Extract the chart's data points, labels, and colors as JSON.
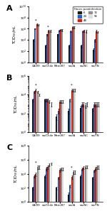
{
  "panels": [
    "A",
    "B",
    "C"
  ],
  "groups": [
    "CA/09",
    "sw/Chile",
    "Mem/87",
    "sw/IA",
    "sw/NC",
    "sw/TN"
  ],
  "bar_colors": [
    "#1a1a1a",
    "#3060b0",
    "#d02010",
    "#909090",
    "#e0e0e0"
  ],
  "panel_A": {
    "n_bars": 4,
    "ylim": [
      1.0,
      10000000000.0
    ],
    "yticks": [
      1.0,
      100.0,
      10000.0,
      1000000.0,
      100000000.0,
      10000000000.0
    ],
    "data": [
      [
        10000.0,
        1000000.0,
        6000000.0,
        5000000.0
      ],
      [
        1000.0,
        100000.0,
        500000.0,
        500000.0
      ],
      [
        100000.0,
        500000.0,
        700000.0,
        600000.0
      ],
      [
        1000.0,
        400000.0,
        2000000.0,
        2000000.0
      ],
      [
        1000.0,
        400000.0,
        500000.0,
        400000.0
      ],
      [
        200.0,
        10000.0,
        400000.0,
        300000.0
      ]
    ],
    "errors": [
      [
        3000.0,
        200000.0,
        2000000.0,
        1000000.0
      ],
      [
        500.0,
        30000.0,
        200000.0,
        200000.0
      ],
      [
        30000.0,
        100000.0,
        200000.0,
        200000.0
      ],
      [
        500.0,
        100000.0,
        800000.0,
        800000.0
      ],
      [
        500.0,
        100000.0,
        200000.0,
        200000.0
      ],
      [
        100.0,
        5000.0,
        200000.0,
        100000.0
      ]
    ],
    "asterisks": [
      0,
      1
    ]
  },
  "panel_B": {
    "n_bars": 5,
    "ylim": [
      1.0,
      1000000.0
    ],
    "yticks": [
      1.0,
      100.0,
      10000.0,
      1000000.0
    ],
    "data": [
      [
        3000.0,
        20000.0,
        30000.0,
        20000.0,
        10000.0
      ],
      [
        3000.0,
        3000.0,
        3000.0,
        2000.0,
        1000.0
      ],
      [
        50.0,
        200.0,
        2000.0,
        2000.0,
        2000.0
      ],
      [
        200.0,
        3000.0,
        30000.0,
        30000.0,
        30000.0
      ],
      [
        400.0,
        1000.0,
        1000.0,
        800.0,
        1000.0
      ],
      [
        300.0,
        1000.0,
        1000.0,
        1000.0,
        1000.0
      ]
    ],
    "errors": [
      [
        1000.0,
        5000.0,
        10000.0,
        5000.0,
        3000.0
      ],
      [
        1000.0,
        1000.0,
        1000.0,
        800.0,
        500.0
      ],
      [
        30.0,
        100.0,
        800.0,
        800.0,
        800.0
      ],
      [
        100.0,
        1000.0,
        10000.0,
        10000.0,
        10000.0
      ],
      [
        200.0,
        500.0,
        500.0,
        400.0,
        500.0
      ],
      [
        100.0,
        500.0,
        500.0,
        500.0,
        500.0
      ]
    ],
    "asterisks": [
      0,
      3
    ]
  },
  "panel_C": {
    "n_bars": 5,
    "ylim": [
      1.0,
      100000000.0
    ],
    "yticks": [
      1.0,
      100.0,
      10000.0,
      1000000.0,
      100000000.0
    ],
    "data": [
      [
        100.0,
        5000.0,
        10000.0,
        100000.0,
        100000.0
      ],
      [
        5000.0,
        60000.0,
        100000.0,
        200000.0,
        300000.0
      ],
      [
        100.0,
        3000.0,
        40000.0,
        50000.0,
        50000.0
      ],
      [
        10.0,
        200.0,
        4000.0,
        20000.0,
        20000.0
      ],
      [
        5000.0,
        50000.0,
        80000.0,
        100000.0,
        100000.0
      ],
      [
        3000.0,
        30000.0,
        60000.0,
        100000.0,
        100000.0
      ]
    ],
    "errors": [
      [
        50.0,
        2000.0,
        5000.0,
        50000.0,
        50000.0
      ],
      [
        2000.0,
        30000.0,
        50000.0,
        80000.0,
        100000.0
      ],
      [
        50.0,
        1000.0,
        20000.0,
        20000.0,
        20000.0
      ],
      [
        10.0,
        100.0,
        2000.0,
        10000.0,
        10000.0
      ],
      [
        2000.0,
        20000.0,
        30000.0,
        40000.0,
        40000.0
      ],
      [
        1000.0,
        10000.0,
        30000.0,
        50000.0,
        50000.0
      ]
    ],
    "asterisks": [
      0,
      3
    ]
  },
  "legend_labels": [
    "6",
    "24",
    "48",
    "72",
    "96"
  ],
  "figsize": [
    1.5,
    2.97
  ],
  "dpi": 100
}
